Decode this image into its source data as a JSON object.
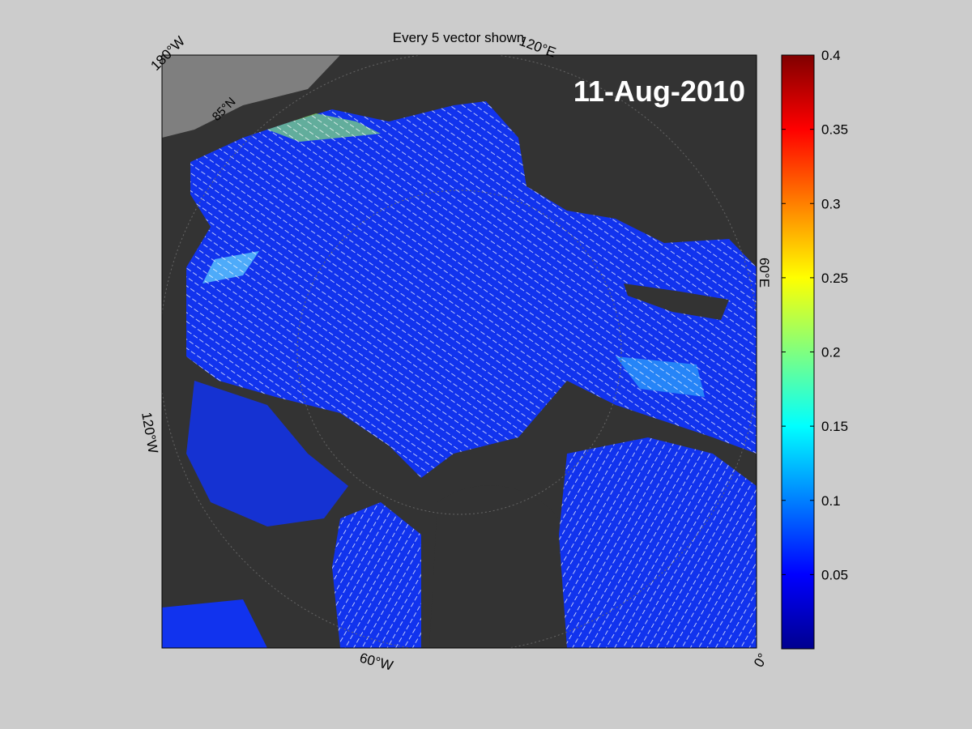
{
  "title": "Every 5 vector shown",
  "date": "11-Aug-2010",
  "lon_labels": [
    "180°W",
    "120°E",
    "60°E",
    "0°",
    "60°W",
    "120°W"
  ],
  "lat_labels": [
    "85°N"
  ],
  "colorbar": {
    "clim": [
      0,
      0.4
    ],
    "ticks": [
      0.05,
      0.1,
      0.15,
      0.2,
      0.25,
      0.3,
      0.35,
      0.4
    ]
  }
}
